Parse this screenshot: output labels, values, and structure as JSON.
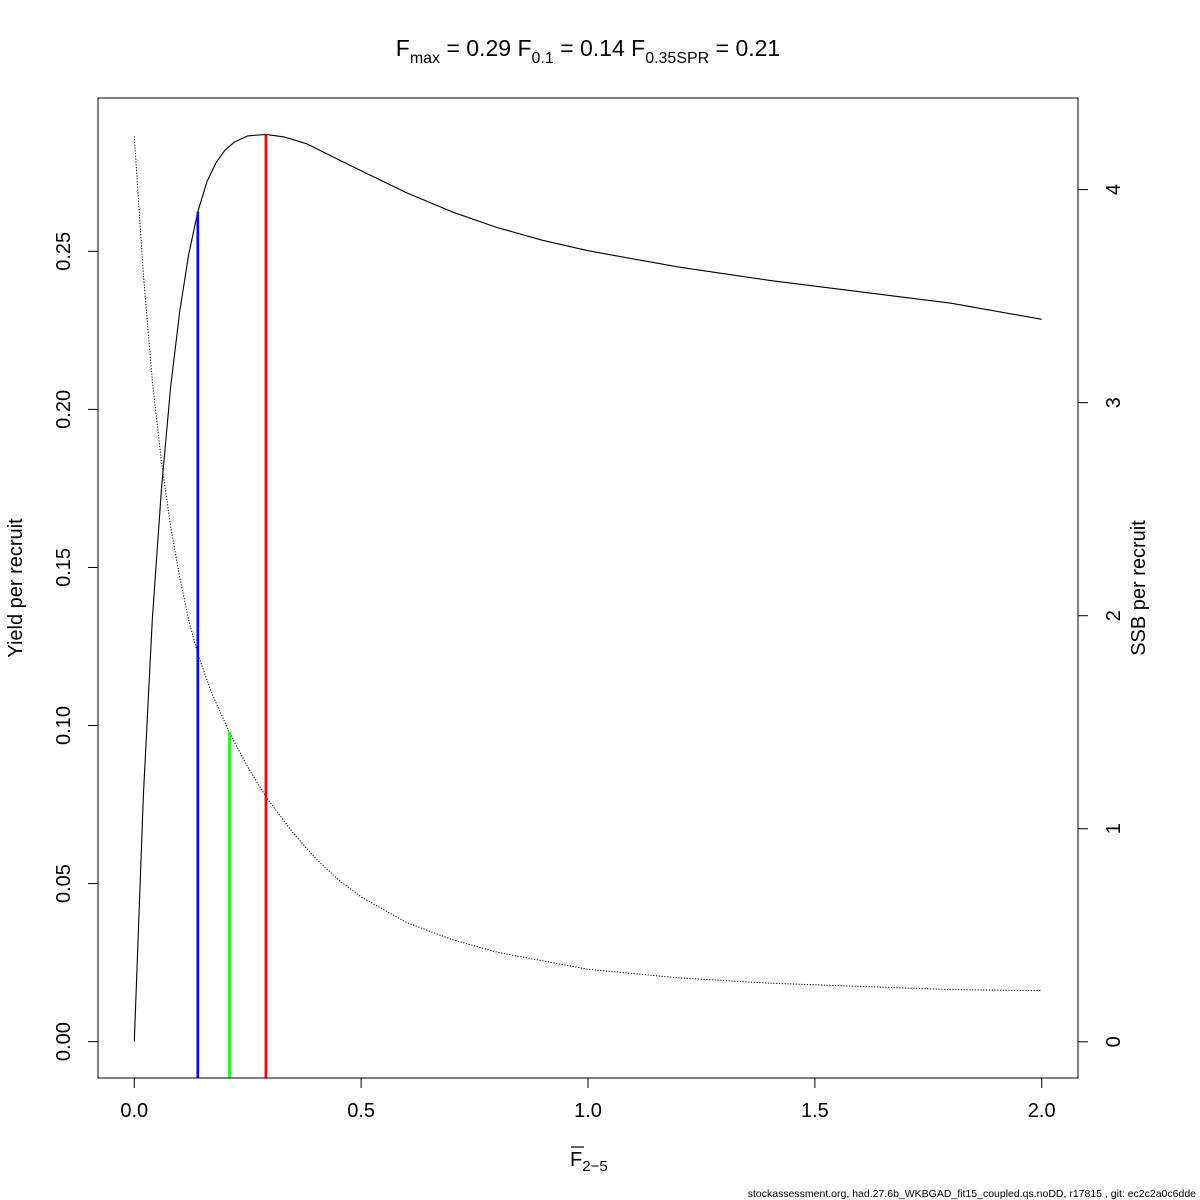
{
  "title": {
    "items": [
      {
        "base": "F",
        "sub": "max",
        "value": "0.29"
      },
      {
        "base": "F",
        "sub": "0.1",
        "value": "0.14"
      },
      {
        "base": "F",
        "sub": "0.35SPR",
        "value": "0.21"
      }
    ]
  },
  "xaxis": {
    "label_base": "F",
    "label_sub": "2−5",
    "ticks": [
      "0.0",
      "0.5",
      "1.0",
      "1.5",
      "2.0"
    ]
  },
  "yaxis_left": {
    "label": "Yield per recruit",
    "ticks": [
      "0.00",
      "0.05",
      "0.10",
      "0.15",
      "0.20",
      "0.25"
    ]
  },
  "yaxis_right": {
    "label": "SSB per recruit",
    "ticks": [
      "0",
      "1",
      "2",
      "3",
      "4"
    ]
  },
  "footer": "stockassessment.org, had.27.6b_WKBGAD_fit15_coupled.qs.noDD, r17815 , git: ec2c2a0c6dde",
  "chart_data": {
    "type": "line",
    "xlabel": "F 2-5",
    "ylabel": "Yield per recruit",
    "y2label": "SSB per recruit",
    "xlim": [
      -0.08,
      2.08
    ],
    "ylim": [
      -0.0115,
      0.2985
    ],
    "y2lim": [
      -0.17,
      4.43
    ],
    "x_ticks": [
      0.0,
      0.5,
      1.0,
      1.5,
      2.0
    ],
    "y_ticks": [
      0.0,
      0.05,
      0.1,
      0.15,
      0.2,
      0.25
    ],
    "y2_ticks": [
      0,
      1,
      2,
      3,
      4
    ],
    "series": [
      {
        "axis": "left",
        "style": "solid",
        "color": "#000000",
        "x": [
          0.0,
          0.02,
          0.04,
          0.06,
          0.08,
          0.1,
          0.12,
          0.14,
          0.16,
          0.18,
          0.2,
          0.22,
          0.25,
          0.29,
          0.33,
          0.38,
          0.45,
          0.5,
          0.6,
          0.7,
          0.8,
          0.9,
          1.0,
          1.2,
          1.4,
          1.6,
          1.8,
          2.0
        ],
        "y": [
          0.0,
          0.078,
          0.134,
          0.175,
          0.207,
          0.231,
          0.249,
          0.2625,
          0.272,
          0.278,
          0.282,
          0.2845,
          0.2865,
          0.287,
          0.2862,
          0.284,
          0.279,
          0.2755,
          0.2685,
          0.2625,
          0.2575,
          0.2535,
          0.2502,
          0.245,
          0.2408,
          0.2372,
          0.2336,
          0.2285
        ]
      },
      {
        "axis": "right",
        "style": "dotted",
        "color": "#000000",
        "x": [
          0.0,
          0.02,
          0.04,
          0.06,
          0.08,
          0.1,
          0.12,
          0.14,
          0.17,
          0.21,
          0.25,
          0.29,
          0.35,
          0.4,
          0.45,
          0.5,
          0.6,
          0.7,
          0.8,
          0.9,
          1.0,
          1.2,
          1.4,
          1.6,
          1.8,
          2.0
        ],
        "y": [
          4.25,
          3.6,
          3.1,
          2.72,
          2.42,
          2.18,
          1.98,
          1.82,
          1.64,
          1.45,
          1.29,
          1.15,
          0.98,
          0.86,
          0.76,
          0.68,
          0.56,
          0.48,
          0.42,
          0.38,
          0.34,
          0.3,
          0.275,
          0.26,
          0.245,
          0.24
        ]
      }
    ],
    "reference_lines": [
      {
        "name": "Fmax",
        "x": 0.29,
        "y_top": 0.287,
        "color": "#ff0000"
      },
      {
        "name": "F0.1",
        "x": 0.14,
        "y_top": 0.2625,
        "color": "#0000ff"
      },
      {
        "name": "F0.35SPR",
        "x": 0.21,
        "y_top": 0.098,
        "color": "#00ff00"
      }
    ]
  }
}
